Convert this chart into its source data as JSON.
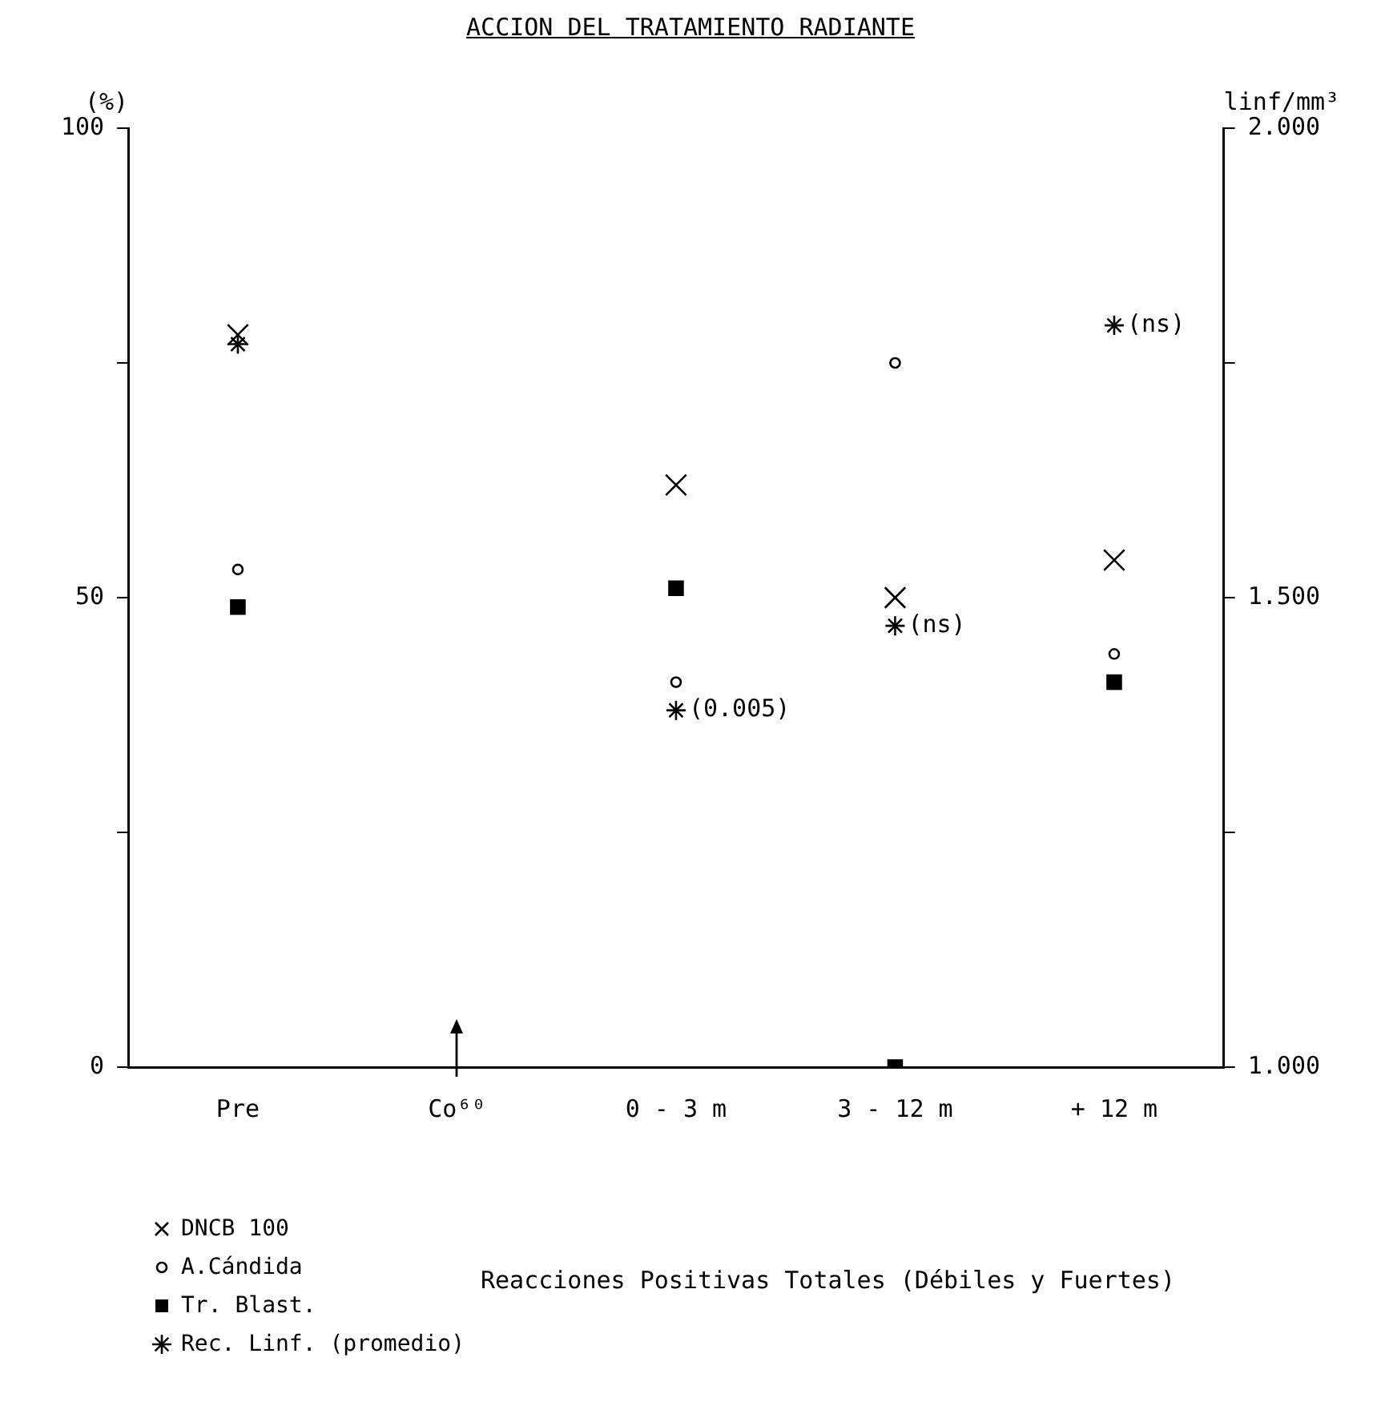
{
  "chart_data": {
    "type": "scatter",
    "title": "ACCION DEL TRATAMIENTO RADIANTE",
    "ylabel": "(%)",
    "y2label": "linf/mm³",
    "categories": [
      "Pre",
      "Co⁶⁰",
      "0 - 3 m",
      "3 - 12 m",
      "+ 12 m"
    ],
    "series": [
      {
        "name": "DNCB 100",
        "color": "#000000",
        "marker": "cross",
        "values": [
          78,
          null,
          62,
          50,
          54
        ]
      },
      {
        "name": "A.Cándida",
        "color": "#000000",
        "marker": "circle",
        "values": [
          53,
          null,
          41,
          75,
          44
        ]
      },
      {
        "name": "Tr. Blast.",
        "color": "#000000",
        "marker": "square",
        "values": [
          49,
          null,
          51,
          0,
          41
        ]
      },
      {
        "name": "Rec. Linf. (promedio)",
        "color": "#000000",
        "marker": "cross",
        "axis": "y2",
        "values": [
          1.77,
          null,
          1.38,
          1.47,
          1.79
        ]
      }
    ],
    "ylim": [
      0,
      100
    ],
    "yticks": [
      0,
      {
        "value": 25,
        "label": null
      },
      50,
      {
        "value": 75,
        "label": null
      },
      100
    ],
    "y2lim": [
      1,
      2
    ],
    "y2ticks": [
      {
        "value": 1,
        "label": "1.000"
      },
      {
        "value": 1.25,
        "label": null
      },
      {
        "value": 1.5,
        "label": "1.500"
      },
      {
        "value": 1.75,
        "label": null
      },
      {
        "value": 2,
        "label": "2.000"
      }
    ],
    "grid": false,
    "legend": "bottom left",
    "annotations": [
      "Reacciones Positivas Totales (Débiles y Fuertes)",
      {
        "text": "(0.005)",
        "x": "0 - 3 m",
        "y": 38
      },
      {
        "text": "(ns)",
        "x": "3 - 12 m",
        "y": 47
      },
      {
        "text": "(ns)",
        "x": "+ 12 m",
        "y": 79
      }
    ]
  }
}
